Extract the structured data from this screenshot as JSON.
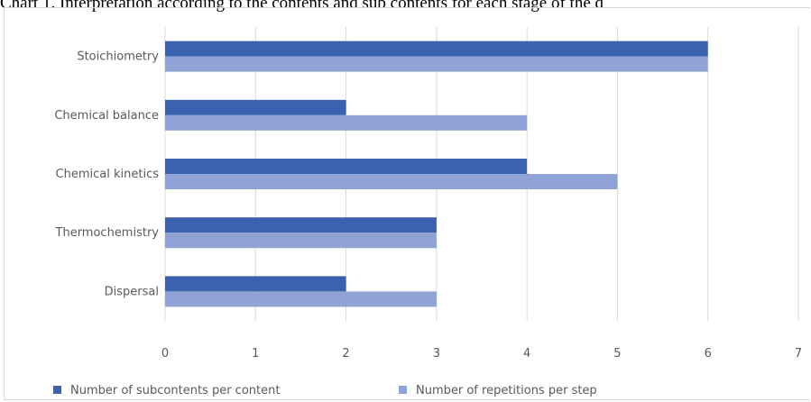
{
  "caption": "Chart 1. Interpretation according to the contents and sub contents for each stage of the d",
  "chart_data": {
    "type": "bar",
    "orientation": "horizontal",
    "categories": [
      "Stoichiometry",
      "Chemical balance",
      "Chemical kinetics",
      "Thermochemistry",
      "Dispersal"
    ],
    "series": [
      {
        "name": "Number of subcontents per content",
        "values": [
          6,
          2,
          4,
          3,
          2
        ],
        "color": "#3a62ae"
      },
      {
        "name": "Number of repetitions per step",
        "values": [
          6,
          4,
          5,
          3,
          3
        ],
        "color": "#8fa3d6"
      }
    ],
    "xticks": [
      "0",
      "1",
      "2",
      "3",
      "4",
      "5",
      "6",
      "7"
    ],
    "xlim": [
      0,
      7
    ],
    "grid": true,
    "legend_position": "bottom"
  }
}
